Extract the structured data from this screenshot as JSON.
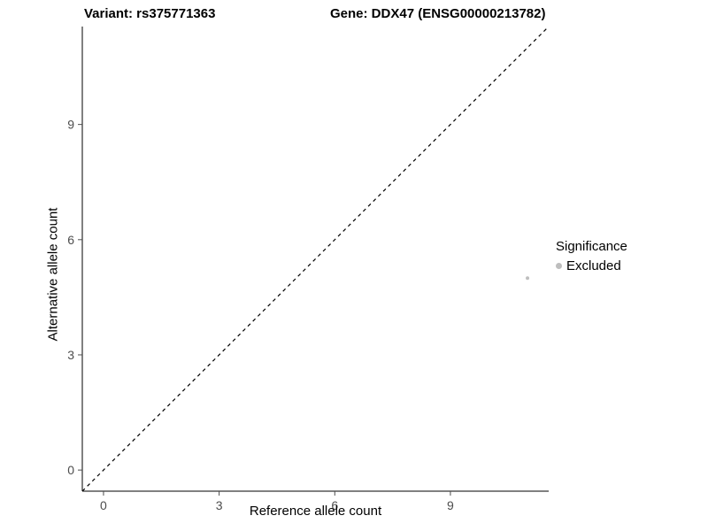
{
  "chart_data": {
    "type": "scatter",
    "title_left": "Variant: rs375771363",
    "title_right": "Gene: DDX47 (ENSG00000213782)",
    "xlabel": "Reference allele count",
    "ylabel": "Alternative allele count",
    "xlim": [
      -0.55,
      11.55
    ],
    "ylim": [
      -0.55,
      11.55
    ],
    "xticks": [
      0,
      3,
      6,
      9
    ],
    "yticks": [
      0,
      3,
      6,
      9
    ],
    "grid": false,
    "points": [
      {
        "x": 11,
        "y": 5,
        "series": "Excluded"
      }
    ],
    "point_color": "#bebebe",
    "point_radius": 2,
    "reference_line": {
      "type": "identity",
      "style": "dashed",
      "color": "#000000"
    },
    "axis_color": "#000000",
    "tick_label_color": "#4d4d4d",
    "legend": {
      "title": "Significance",
      "position": "right",
      "entries": [
        {
          "label": "Excluded",
          "color": "#bebebe"
        }
      ]
    }
  }
}
